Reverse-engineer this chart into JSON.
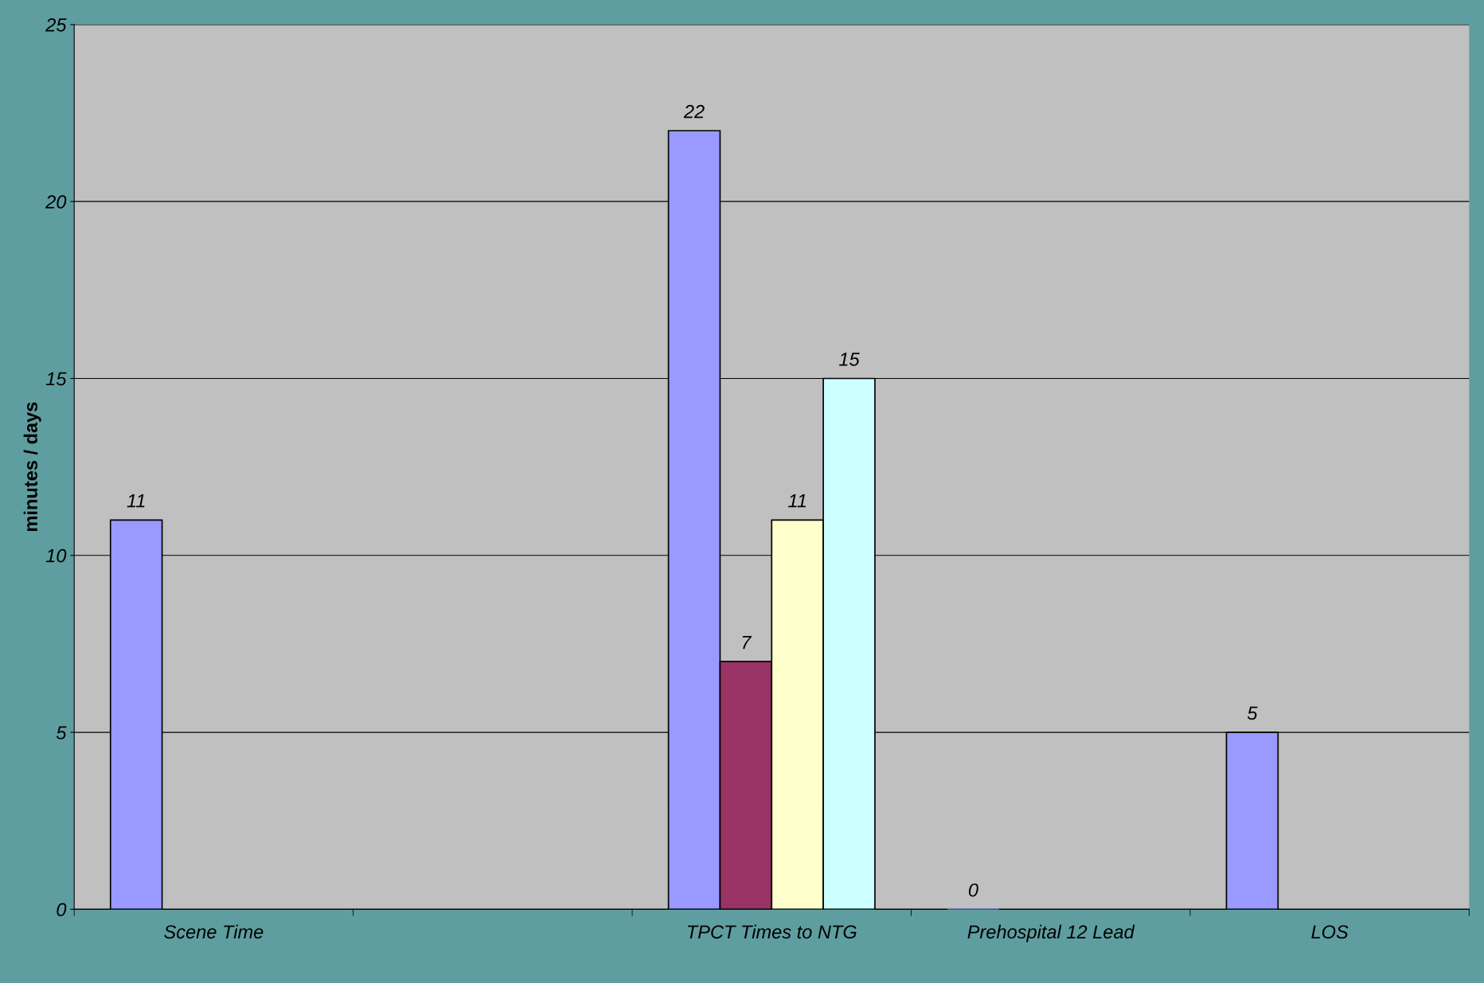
{
  "chart_data": {
    "type": "bar",
    "ylabel": "minutes / days",
    "categories": [
      "Scene Time",
      null,
      "TPCT Times to NTG",
      "Prehospital 12 Lead",
      "LOS"
    ],
    "series": [
      {
        "color": "#9999ff",
        "values": [
          11,
          null,
          22,
          0,
          5
        ]
      },
      {
        "color": "#993366",
        "values": [
          null,
          null,
          7,
          null,
          null
        ]
      },
      {
        "color": "#ffffcc",
        "values": [
          null,
          null,
          11,
          null,
          null
        ]
      },
      {
        "color": "#ccffff",
        "values": [
          null,
          null,
          15,
          null,
          null
        ]
      }
    ],
    "ylim": [
      0,
      25
    ],
    "yticks": [
      0,
      5,
      10,
      15,
      20,
      25
    ],
    "grid": "y",
    "data_labels": true,
    "legend": false
  }
}
